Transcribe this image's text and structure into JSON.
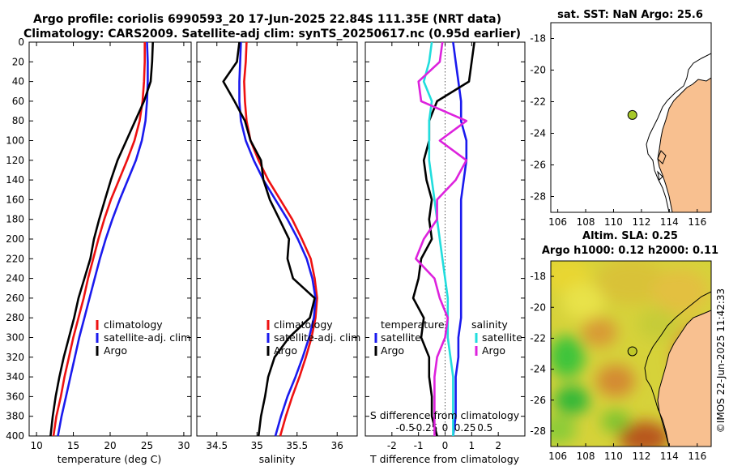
{
  "header": {
    "line1": "Argo profile: coriolis 6990593_20 17-Jun-2025 22.84S 111.35E (NRT data)",
    "line2": "Climatology: CARS2009. Satellite-adj clim: synTS_20250617.nc (0.95d earlier)"
  },
  "watermark": "©IMOS 22-Jun-2025 11:42:33",
  "colors": {
    "climatology": "#ee1111",
    "satellite": "#1a1aee",
    "argo": "#000000",
    "sal_satellite": "#22dddd",
    "sal_argo": "#dd22dd",
    "land": "#f8c090"
  },
  "chart_data": [
    {
      "type": "line",
      "id": "temperature",
      "xlabel": "temperature (deg C)",
      "ylabel": "",
      "xlim": [
        9,
        31
      ],
      "ylim": [
        400,
        0
      ],
      "xticks": [
        10,
        15,
        20,
        25,
        30
      ],
      "yticks": [
        0,
        20,
        40,
        60,
        80,
        100,
        120,
        140,
        160,
        180,
        200,
        220,
        240,
        260,
        280,
        300,
        320,
        340,
        360,
        380,
        400
      ],
      "legend": [
        "climatology",
        "satellite-adj. clim",
        "Argo"
      ],
      "series": [
        {
          "name": "climatology",
          "color": "#ee1111",
          "x": [
            24.7,
            24.7,
            24.6,
            24.4,
            24.0,
            23.3,
            22.3,
            21.2,
            20.1,
            19.2,
            18.4,
            17.7,
            17.0,
            16.4,
            15.7,
            15.0,
            14.4,
            13.8,
            13.3,
            12.7,
            12.3
          ],
          "y": [
            0,
            20,
            40,
            60,
            80,
            100,
            120,
            140,
            160,
            180,
            200,
            220,
            240,
            260,
            280,
            300,
            320,
            340,
            360,
            380,
            400
          ]
        },
        {
          "name": "satellite-adj. clim",
          "color": "#1a1aee",
          "x": [
            25.0,
            25.1,
            25.1,
            25.0,
            24.8,
            24.3,
            23.5,
            22.4,
            21.3,
            20.3,
            19.4,
            18.6,
            17.9,
            17.2,
            16.5,
            15.8,
            15.2,
            14.6,
            14.0,
            13.4,
            12.9
          ],
          "y": [
            0,
            20,
            40,
            60,
            80,
            100,
            120,
            140,
            160,
            180,
            200,
            220,
            240,
            260,
            280,
            300,
            320,
            340,
            360,
            380,
            400
          ]
        },
        {
          "name": "Argo",
          "color": "#000000",
          "x": [
            25.8,
            25.7,
            25.5,
            24.6,
            23.4,
            22.2,
            21.0,
            20.1,
            19.3,
            18.5,
            17.8,
            17.3,
            16.5,
            15.7,
            15.1,
            14.4,
            13.7,
            13.1,
            12.6,
            12.2,
            11.9
          ],
          "y": [
            0,
            20,
            40,
            60,
            80,
            100,
            120,
            140,
            160,
            180,
            200,
            220,
            240,
            260,
            280,
            300,
            320,
            340,
            360,
            380,
            400
          ]
        }
      ]
    },
    {
      "type": "line",
      "id": "salinity",
      "xlabel": "salinity",
      "ylabel": "",
      "xlim": [
        34.25,
        36.25
      ],
      "ylim": [
        400,
        0
      ],
      "xticks": [
        34.5,
        35,
        35.5,
        36
      ],
      "legend": [
        "climatology",
        "satellite-adj. clim",
        "Argo"
      ],
      "series": [
        {
          "name": "climatology",
          "color": "#ee1111",
          "x": [
            34.87,
            34.86,
            34.84,
            34.85,
            34.87,
            34.92,
            35.02,
            35.14,
            35.29,
            35.44,
            35.56,
            35.67,
            35.72,
            35.75,
            35.73,
            35.68,
            35.61,
            35.53,
            35.44,
            35.36,
            35.29
          ],
          "y": [
            0,
            20,
            40,
            60,
            80,
            100,
            120,
            140,
            160,
            180,
            200,
            220,
            240,
            260,
            280,
            300,
            320,
            340,
            360,
            380,
            400
          ]
        },
        {
          "name": "satellite-adj. clim",
          "color": "#1a1aee",
          "x": [
            34.8,
            34.79,
            34.78,
            34.78,
            34.8,
            34.86,
            34.96,
            35.08,
            35.23,
            35.38,
            35.51,
            35.62,
            35.69,
            35.73,
            35.71,
            35.65,
            35.57,
            35.48,
            35.38,
            35.3,
            35.23
          ],
          "y": [
            0,
            20,
            40,
            60,
            80,
            100,
            120,
            140,
            160,
            180,
            200,
            220,
            240,
            260,
            280,
            300,
            320,
            340,
            360,
            380,
            400
          ]
        },
        {
          "name": "Argo",
          "color": "#000000",
          "x": [
            34.78,
            34.75,
            34.58,
            34.72,
            34.85,
            34.92,
            35.05,
            35.08,
            35.16,
            35.28,
            35.4,
            35.38,
            35.45,
            35.72,
            35.66,
            35.4,
            35.22,
            35.14,
            35.1,
            35.05,
            35.02
          ],
          "y": [
            0,
            20,
            40,
            60,
            80,
            100,
            120,
            140,
            160,
            180,
            200,
            220,
            240,
            260,
            280,
            300,
            320,
            340,
            360,
            380,
            400
          ]
        }
      ]
    },
    {
      "type": "line",
      "id": "difference",
      "xlabel": "T difference from climatology",
      "xlabel2": "S difference from climatology",
      "xlim": [
        -3,
        3
      ],
      "ylim": [
        400,
        0
      ],
      "xticks": [
        -2,
        -1,
        0,
        1,
        2
      ],
      "xticks2": [
        "-0.5",
        "-0.25",
        "0",
        "0.25",
        "0.5"
      ],
      "legend_temperature": {
        "title": "temperature",
        "entries": [
          "satellite",
          "Argo"
        ]
      },
      "legend_salinity": {
        "title": "salinity",
        "entries": [
          "satellite",
          "Argo"
        ]
      },
      "series": [
        {
          "name": "T satellite",
          "color": "#1a1aee",
          "x": [
            0.3,
            0.4,
            0.5,
            0.6,
            0.6,
            0.8,
            0.8,
            0.7,
            0.6,
            0.6,
            0.6,
            0.6,
            0.6,
            0.6,
            0.6,
            0.5,
            0.5,
            0.4,
            0.4,
            0.4,
            0.3
          ],
          "y": [
            0,
            20,
            40,
            60,
            80,
            100,
            120,
            140,
            160,
            180,
            200,
            220,
            240,
            260,
            280,
            300,
            320,
            340,
            360,
            380,
            400
          ]
        },
        {
          "name": "T Argo",
          "color": "#000000",
          "x": [
            1.1,
            1.0,
            0.9,
            -0.3,
            -0.6,
            -0.6,
            -0.8,
            -0.7,
            -0.5,
            -0.6,
            -0.5,
            -0.9,
            -1.0,
            -1.2,
            -0.8,
            -0.9,
            -0.6,
            -0.6,
            -0.5,
            -0.5,
            -0.3
          ],
          "y": [
            0,
            20,
            40,
            60,
            80,
            100,
            120,
            140,
            160,
            180,
            200,
            220,
            240,
            260,
            280,
            300,
            320,
            340,
            360,
            380,
            400
          ]
        },
        {
          "name": "S satellite",
          "color": "#22dddd",
          "x": [
            -0.5,
            -0.6,
            -0.8,
            -0.5,
            -0.6,
            -0.6,
            -0.6,
            -0.5,
            -0.4,
            -0.3,
            -0.2,
            -0.1,
            0.0,
            0.1,
            0.1,
            0.1,
            0.2,
            0.3,
            0.3,
            0.3,
            0.3
          ],
          "y": [
            0,
            20,
            40,
            60,
            80,
            100,
            120,
            140,
            160,
            180,
            200,
            220,
            240,
            260,
            280,
            300,
            320,
            340,
            360,
            380,
            400
          ]
        },
        {
          "name": "S Argo",
          "color": "#dd22dd",
          "x": [
            -0.1,
            -0.2,
            -1.0,
            -0.9,
            0.8,
            -0.2,
            0.8,
            0.4,
            -0.3,
            -0.3,
            -0.8,
            -1.1,
            -0.4,
            -0.2,
            0.1,
            0.0,
            -0.3,
            -0.4,
            -0.4,
            -0.4,
            -0.4
          ],
          "y": [
            0,
            20,
            40,
            60,
            80,
            100,
            120,
            140,
            160,
            180,
            200,
            220,
            240,
            260,
            280,
            300,
            320,
            340,
            360,
            380,
            400
          ]
        }
      ]
    },
    {
      "type": "map",
      "id": "sst_map",
      "title": "sat. SST: NaN Argo: 25.6",
      "xlim": [
        105.5,
        117
      ],
      "ylim": [
        -29,
        -17
      ],
      "xticks": [
        106,
        108,
        110,
        112,
        114,
        116
      ],
      "yticks": [
        -18,
        -20,
        -22,
        -24,
        -26,
        -28
      ],
      "float_position": {
        "lon": 111.35,
        "lat": -22.84
      }
    },
    {
      "type": "map",
      "id": "sla_map",
      "title_line1": "Altim. SLA: 0.25",
      "title_line2": "Argo h1000: 0.12 h2000: 0.11",
      "xlim": [
        105.5,
        117
      ],
      "ylim": [
        -29,
        -17
      ],
      "xticks": [
        106,
        108,
        110,
        112,
        114,
        116
      ],
      "yticks": [
        -18,
        -20,
        -22,
        -24,
        -26,
        -28
      ],
      "float_position": {
        "lon": 111.35,
        "lat": -22.84
      }
    }
  ]
}
